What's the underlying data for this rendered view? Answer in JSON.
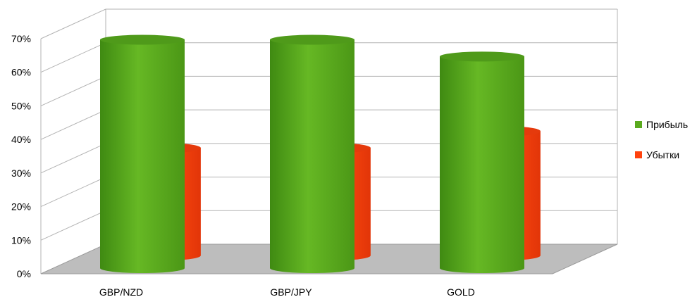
{
  "chart_data": {
    "type": "bar",
    "style": "3d-cylinder",
    "categories": [
      "GBP/NZD",
      "GBP/JPY",
      "GOLD"
    ],
    "series": [
      {
        "name": "Прибыль",
        "values": [
          68,
          68,
          63
        ],
        "color": "#5aaa1e"
      },
      {
        "name": "Убытки",
        "values": [
          32,
          32,
          37
        ],
        "color": "#ff420e"
      }
    ],
    "ylim": [
      0,
      70
    ],
    "yticks": [
      "0%",
      "10%",
      "20%",
      "30%",
      "40%",
      "50%",
      "60%",
      "70%"
    ],
    "grid": true,
    "legend_position": "right",
    "title": "",
    "xlabel": "",
    "ylabel": ""
  }
}
